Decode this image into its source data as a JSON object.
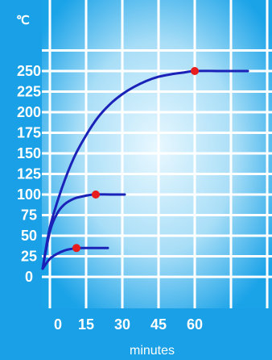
{
  "colors": {
    "frame": "#1aa0e6",
    "plot_edge": "#1ba3e8",
    "plot_center": "#e9f8ff",
    "grid": "#ffffff",
    "curve": "#1b22b8",
    "marker": "#e81c1c",
    "text": "#ffffff"
  },
  "chart_data": {
    "type": "line",
    "ylabel": "℃",
    "xlabel": "minutes",
    "ylim": [
      0,
      275
    ],
    "xlim": [
      -3,
      85
    ],
    "y_ticks": [
      "0",
      "25",
      "50",
      "75",
      "100",
      "125",
      "150",
      "175",
      "200",
      "225",
      "250"
    ],
    "x_ticks": [
      "0",
      "15",
      "30",
      "45",
      "60"
    ],
    "grid": true,
    "series": [
      {
        "values": [
          [
            -3,
            10
          ],
          [
            0,
            22
          ],
          [
            3,
            28
          ],
          [
            6,
            32
          ],
          [
            9,
            34
          ],
          [
            12,
            35
          ],
          [
            15,
            35
          ],
          [
            20,
            35
          ],
          [
            24,
            35
          ]
        ],
        "marker": [
          11,
          35
        ]
      },
      {
        "values": [
          [
            -3,
            10
          ],
          [
            0,
            55
          ],
          [
            3,
            77
          ],
          [
            6,
            88
          ],
          [
            10,
            95
          ],
          [
            14,
            98
          ],
          [
            18,
            100
          ],
          [
            25,
            100
          ],
          [
            31,
            100
          ]
        ],
        "marker": [
          19,
          100
        ]
      },
      {
        "values": [
          [
            -3,
            10
          ],
          [
            0,
            60
          ],
          [
            5,
            108
          ],
          [
            10,
            145
          ],
          [
            15,
            172
          ],
          [
            20,
            194
          ],
          [
            25,
            210
          ],
          [
            30,
            222
          ],
          [
            35,
            231
          ],
          [
            40,
            238
          ],
          [
            45,
            243
          ],
          [
            50,
            246
          ],
          [
            55,
            248
          ],
          [
            60,
            250
          ],
          [
            70,
            250
          ],
          [
            82,
            250
          ]
        ],
        "marker": [
          60,
          250
        ]
      }
    ]
  }
}
